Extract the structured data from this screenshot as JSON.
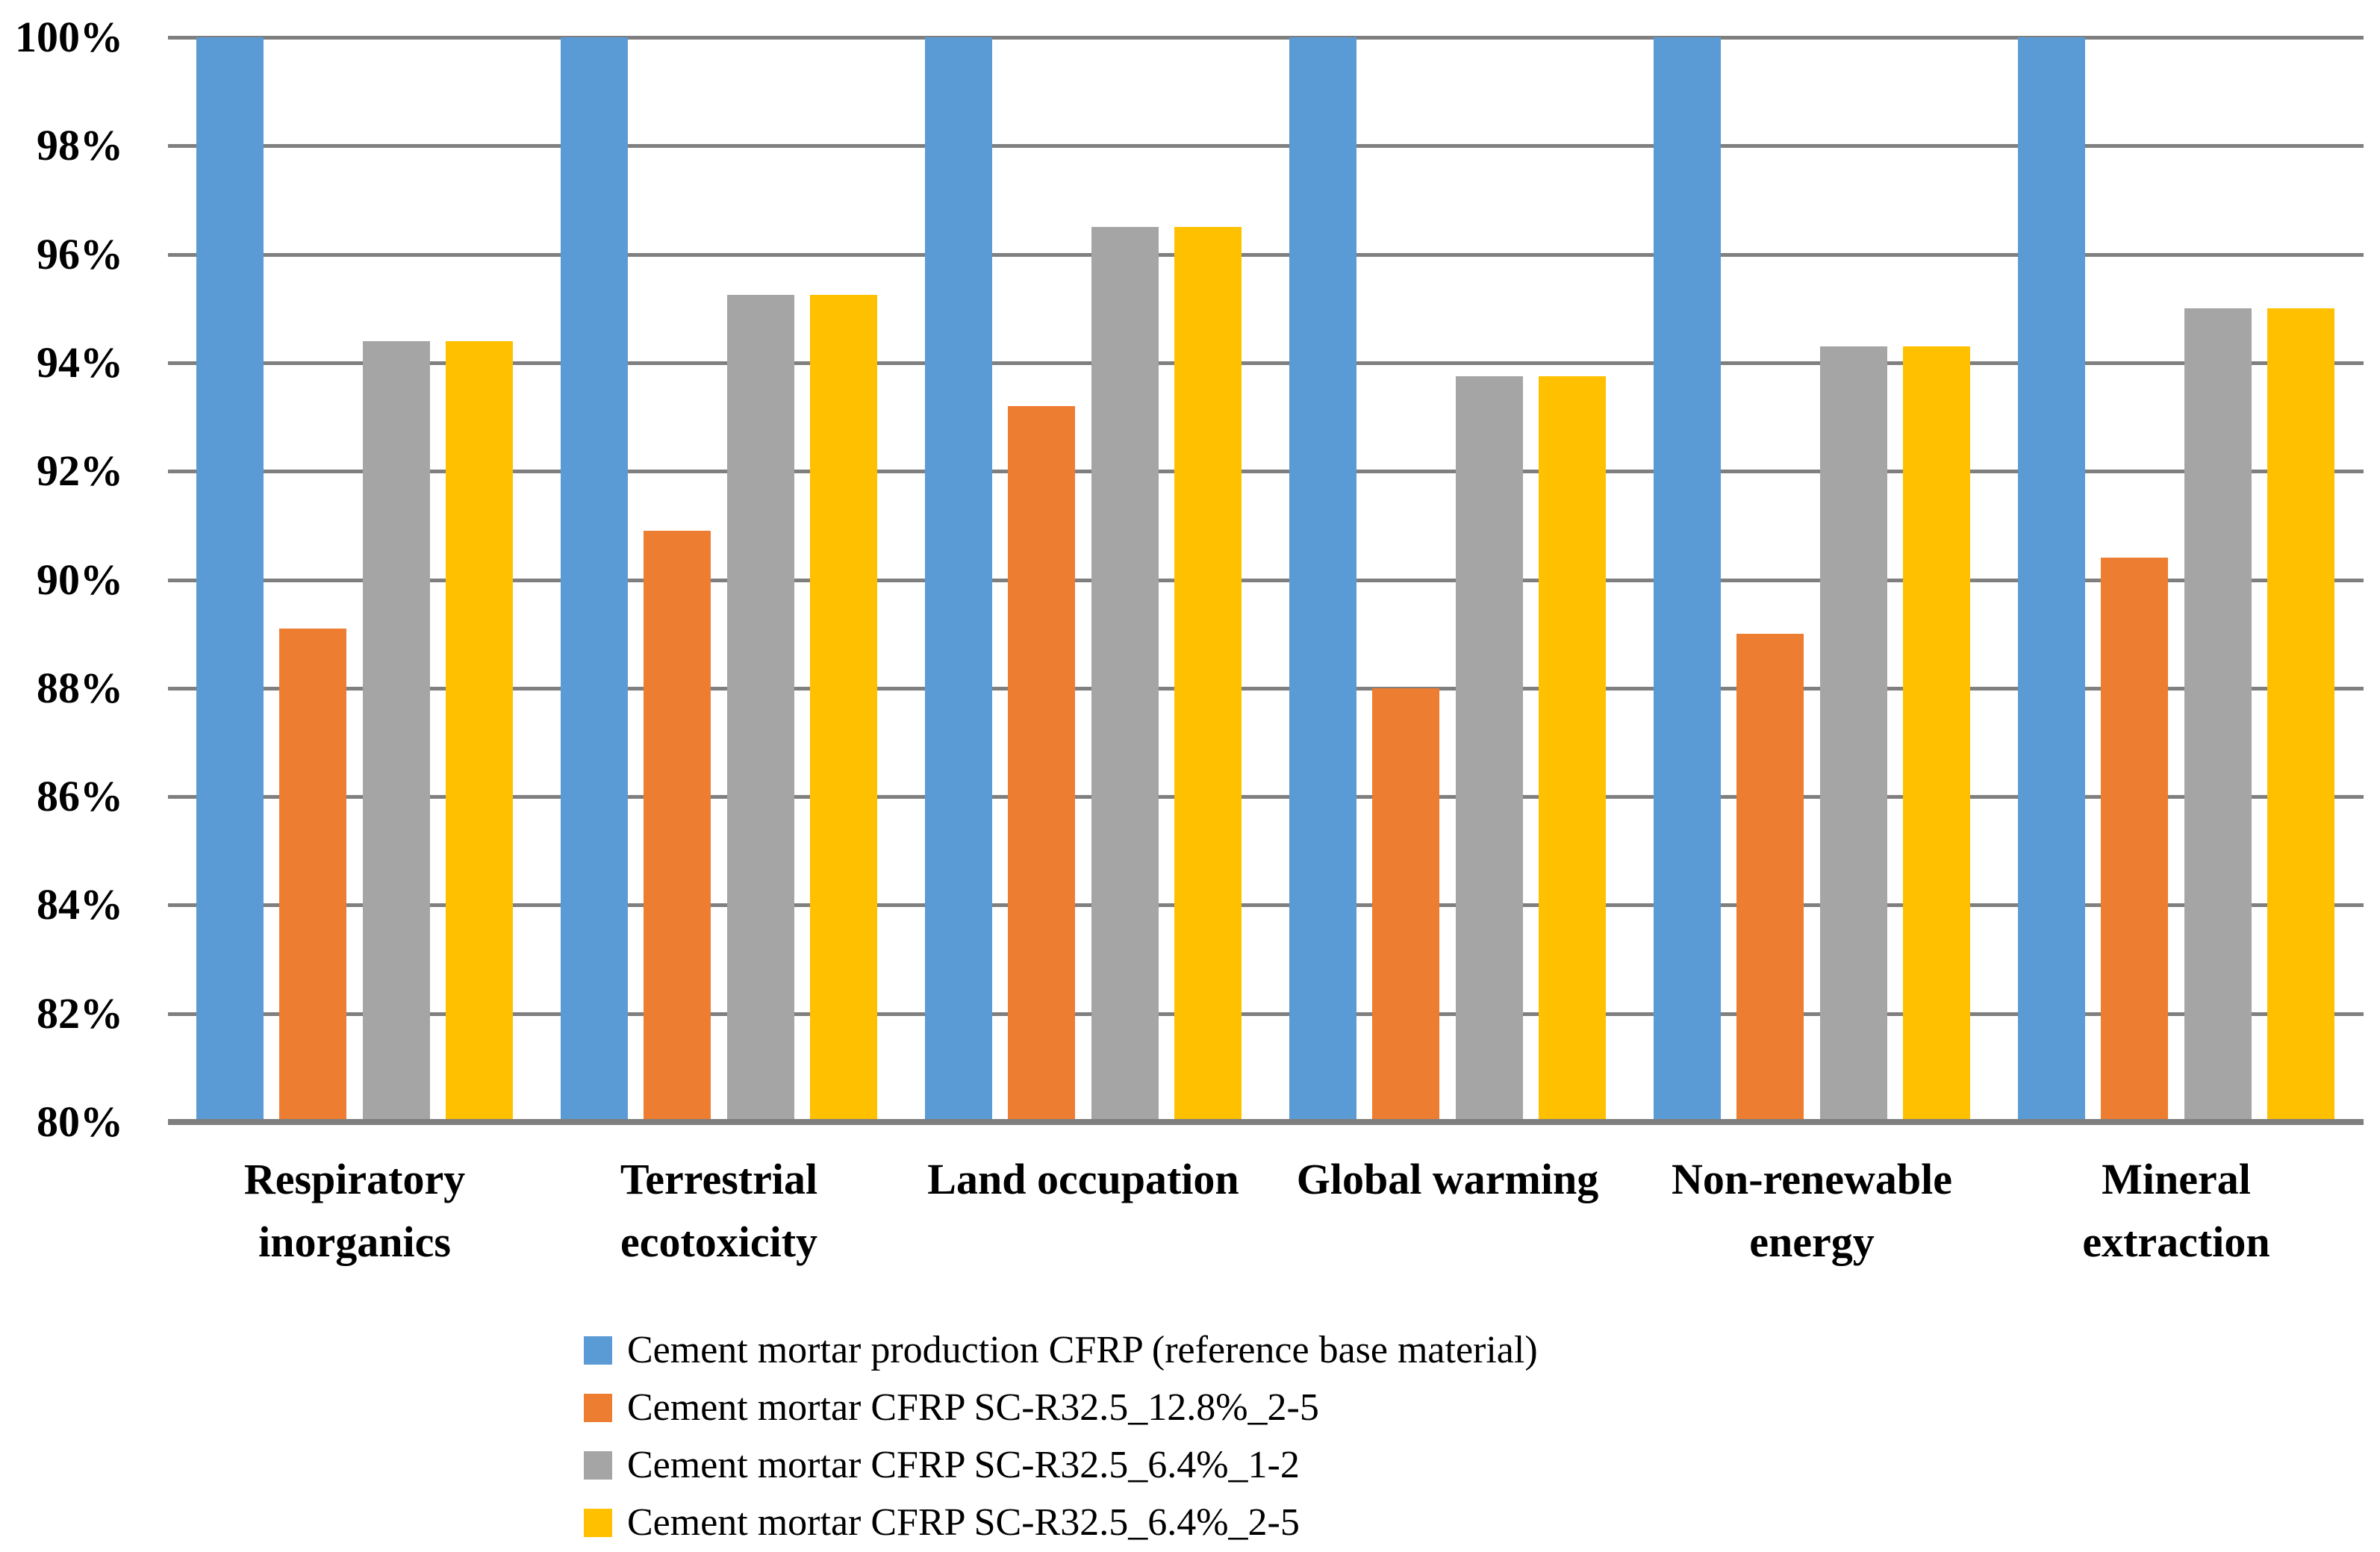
{
  "chart_data": {
    "type": "bar",
    "title": "",
    "xlabel": "",
    "ylabel": "",
    "categories": [
      "Respiratory inorganics",
      "Terrestrial ecotoxicity",
      "Land occupation",
      "Global warming",
      "Non-renewable energy",
      "Mineral extraction"
    ],
    "series": [
      {
        "name": "Cement mortar production CFRP (reference base material)",
        "color": "#5B9BD5",
        "values": [
          100,
          100,
          100,
          100,
          100,
          100
        ]
      },
      {
        "name": "Cement mortar CFRP SC-R32.5_12.8%_2-5",
        "color": "#ED7D31",
        "values": [
          89.1,
          90.9,
          93.2,
          88.0,
          89.0,
          90.4
        ]
      },
      {
        "name": "Cement mortar CFRP SC-R32.5_6.4%_1-2",
        "color": "#A5A5A5",
        "values": [
          94.4,
          95.25,
          96.5,
          93.75,
          94.3,
          95.0
        ]
      },
      {
        "name": "Cement mortar CFRP SC-R32.5_6.4%_2-5",
        "color": "#FFC000",
        "values": [
          94.4,
          95.25,
          96.5,
          93.75,
          94.3,
          95.0
        ]
      }
    ],
    "ylim": [
      80,
      100
    ],
    "ytick_step": 2,
    "ytick_labels": [
      "100%",
      "98%",
      "96%",
      "94%",
      "92%",
      "90%",
      "88%",
      "86%",
      "84%",
      "82%",
      "80%"
    ],
    "grid": "horizontal",
    "legend_position": "bottom",
    "colors": {
      "gridline": "#7F7F7F",
      "axis_line": "#7F7F7F",
      "background": "#FFFFFF",
      "text": "#000000"
    }
  }
}
